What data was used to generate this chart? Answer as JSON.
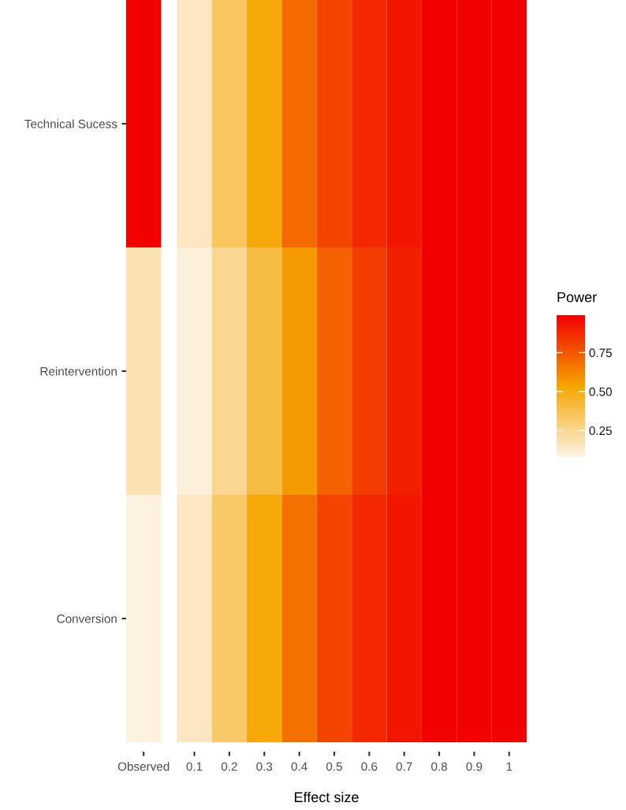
{
  "chart_data": {
    "type": "heatmap",
    "categories": [
      "Observed",
      null,
      "0.1",
      "0.2",
      "0.3",
      "0.4",
      "0.5",
      "0.6",
      "0.7",
      "0.8",
      "0.9",
      "1"
    ],
    "y_categories": [
      "Technical Sucess",
      "Reintervention",
      "Conversion"
    ],
    "cells": [
      [
        0.985,
        null,
        0.15,
        0.35,
        0.52,
        0.7,
        0.8,
        0.88,
        0.93,
        0.985,
        0.985,
        0.985
      ],
      [
        0.18,
        null,
        0.1,
        0.25,
        0.4,
        0.57,
        0.72,
        0.82,
        0.9,
        0.985,
        0.985,
        0.985
      ],
      [
        0.09,
        null,
        0.15,
        0.33,
        0.52,
        0.68,
        0.8,
        0.88,
        0.93,
        0.985,
        0.985,
        0.985
      ]
    ],
    "xlabel": "Effect size",
    "clabel": "Power",
    "clim": [
      0.08,
      0.99
    ],
    "cticks": [
      {
        "value": 0.25,
        "label": "0.25"
      },
      {
        "value": 0.5,
        "label": "0.50"
      },
      {
        "value": 0.75,
        "label": "0.75"
      }
    ]
  }
}
